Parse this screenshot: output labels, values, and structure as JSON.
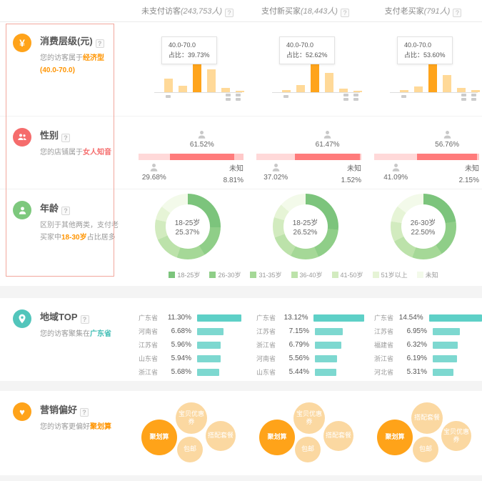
{
  "icons": {
    "yen": "¥",
    "heart": "♥",
    "help": "?"
  },
  "header": {
    "columns": [
      {
        "name": "未支付访客",
        "count": "(243,753人)"
      },
      {
        "name": "支付新买家",
        "count": "(18,443人)"
      },
      {
        "name": "支付老买家",
        "count": "(791人)"
      }
    ]
  },
  "sections": {
    "consumption": {
      "title": "消费层级(元)",
      "desc_prefix": "您的访客属于",
      "desc_highlight": "经济型(40.0-70.0)",
      "tooltip_label": "占比：",
      "colors": {
        "bar": "#ffd998",
        "bar_highlight": "#ffa41b"
      },
      "charts": [
        {
          "range": "40.0-70.0",
          "share": "39.73%",
          "bars": [
            46,
            22,
            100,
            77,
            14,
            5
          ],
          "highlight_index": 2
        },
        {
          "range": "40.0-70.0",
          "share": "52.62%",
          "bars": [
            7,
            23,
            100,
            65,
            12,
            5
          ],
          "highlight_index": 2
        },
        {
          "range": "40.0-70.0",
          "share": "53.60%",
          "bars": [
            7,
            19,
            100,
            58,
            14,
            7
          ],
          "highlight_index": 2
        }
      ]
    },
    "gender": {
      "title": "性别",
      "desc_prefix": "您的店铺属于",
      "desc_highlight": "女人知音",
      "unknown_label": "未知",
      "colors": {
        "primary": "#ff7b7b",
        "secondary": "#ffd9d9",
        "unknown": "#ffc9c9"
      },
      "charts": [
        {
          "primary": 61.52,
          "secondary": 29.68,
          "unknown": 8.81,
          "primary_label": "61.52%",
          "secondary_label": "29.68%",
          "unknown_value": "8.81%"
        },
        {
          "primary": 61.47,
          "secondary": 37.02,
          "unknown": 1.52,
          "primary_label": "61.47%",
          "secondary_label": "37.02%",
          "unknown_value": "1.52%"
        },
        {
          "primary": 56.76,
          "secondary": 41.09,
          "unknown": 2.15,
          "primary_label": "56.76%",
          "secondary_label": "41.09%",
          "unknown_value": "2.15%"
        }
      ]
    },
    "age": {
      "title": "年龄",
      "desc_prefix": "区别于其他两类，支付老买家中",
      "desc_highlight": "18-30岁",
      "desc_suffix": "占比居多",
      "palette": [
        "#7cc47c",
        "#8fce88",
        "#a5d897",
        "#bce2aa",
        "#d2ebbf",
        "#e6f4d6",
        "#f3faea"
      ],
      "legend": [
        "18-25岁",
        "26-30岁",
        "31-35岁",
        "36-40岁",
        "41-50岁",
        "51岁以上",
        "未知"
      ],
      "charts": [
        {
          "center_label": "18-25岁",
          "center_value": "25.37%",
          "segments": [
            25.37,
            16,
            14,
            13,
            10,
            7,
            14.63
          ]
        },
        {
          "center_label": "18-25岁",
          "center_value": "26.52%",
          "segments": [
            26.52,
            17,
            14,
            12,
            10,
            7,
            13.48
          ]
        },
        {
          "center_label": "26-30岁",
          "center_value": "22.50%",
          "segments": [
            22.5,
            18,
            15,
            12,
            10,
            8,
            14.5
          ]
        }
      ]
    },
    "region": {
      "title": "地域TOP",
      "desc_prefix": "您的访客聚集在",
      "desc_highlight": "广东省",
      "colors": {
        "bar": "#7dd8d0",
        "bar_top": "#5ed0c7"
      },
      "charts": [
        {
          "rows": [
            {
              "label": "广东省",
              "value": "11.30%"
            },
            {
              "label": "河南省",
              "value": "6.68%"
            },
            {
              "label": "江苏省",
              "value": "5.96%"
            },
            {
              "label": "山东省",
              "value": "5.94%"
            },
            {
              "label": "浙江省",
              "value": "5.68%"
            }
          ]
        },
        {
          "rows": [
            {
              "label": "广东省",
              "value": "13.12%"
            },
            {
              "label": "江苏省",
              "value": "7.15%"
            },
            {
              "label": "浙江省",
              "value": "6.79%"
            },
            {
              "label": "河南省",
              "value": "5.56%"
            },
            {
              "label": "山东省",
              "value": "5.44%"
            }
          ]
        },
        {
          "rows": [
            {
              "label": "广东省",
              "value": "14.54%"
            },
            {
              "label": "江苏省",
              "value": "6.95%"
            },
            {
              "label": "福建省",
              "value": "6.32%"
            },
            {
              "label": "浙江省",
              "value": "6.19%"
            },
            {
              "label": "河北省",
              "value": "5.31%"
            }
          ]
        }
      ]
    },
    "marketing": {
      "title": "营销偏好",
      "desc_prefix": "您的访客更偏好",
      "desc_highlight": "聚划算",
      "colors": {
        "main": "#ffa319",
        "light": "#fbd8a1"
      },
      "charts": [
        {
          "bubbles": [
            {
              "label": "聚划算",
              "pos": "main"
            },
            {
              "label": "宝贝优惠券",
              "pos": "top"
            },
            {
              "label": "搭配套餐",
              "pos": "right"
            },
            {
              "label": "包邮",
              "pos": "bottom"
            }
          ]
        },
        {
          "bubbles": [
            {
              "label": "聚划算",
              "pos": "main"
            },
            {
              "label": "宝贝优惠券",
              "pos": "top"
            },
            {
              "label": "搭配套餐",
              "pos": "right"
            },
            {
              "label": "包邮",
              "pos": "bottom"
            }
          ]
        },
        {
          "bubbles": [
            {
              "label": "聚划算",
              "pos": "main"
            },
            {
              "label": "搭配套餐",
              "pos": "top"
            },
            {
              "label": "宝贝优惠券",
              "pos": "right"
            },
            {
              "label": "包邮",
              "pos": "bottom"
            }
          ]
        }
      ]
    }
  },
  "chart_data": [
    {
      "type": "bar",
      "title": "消费层级(元)",
      "series": [
        {
          "name": "未支付访客",
          "highlight_range": "40.0-70.0",
          "highlight_share_pct": 39.73,
          "relative_bar_heights": [
            46,
            22,
            100,
            77,
            14,
            5
          ],
          "highlight_index": 2
        },
        {
          "name": "支付新买家",
          "highlight_range": "40.0-70.0",
          "highlight_share_pct": 52.62,
          "relative_bar_heights": [
            7,
            23,
            100,
            65,
            12,
            5
          ],
          "highlight_index": 2
        },
        {
          "name": "支付老买家",
          "highlight_range": "40.0-70.0",
          "highlight_share_pct": 53.6,
          "relative_bar_heights": [
            7,
            19,
            100,
            58,
            14,
            7
          ],
          "highlight_index": 2
        }
      ]
    },
    {
      "type": "bar",
      "title": "性别",
      "stacked": true,
      "categories": [
        "女(图标)",
        "男(图标)",
        "未知"
      ],
      "series": [
        {
          "name": "未支付访客",
          "values": [
            61.52,
            29.68,
            8.81
          ]
        },
        {
          "name": "支付新买家",
          "values": [
            61.47,
            37.02,
            1.52
          ]
        },
        {
          "name": "支付老买家",
          "values": [
            56.76,
            41.09,
            2.15
          ]
        }
      ]
    },
    {
      "type": "pie",
      "title": "年龄",
      "legend": [
        "18-25岁",
        "26-30岁",
        "31-35岁",
        "36-40岁",
        "41-50岁",
        "51岁以上",
        "未知"
      ],
      "series": [
        {
          "name": "未支付访客",
          "labeled_slice": "18-25岁",
          "labeled_value_pct": 25.37
        },
        {
          "name": "支付新买家",
          "labeled_slice": "18-25岁",
          "labeled_value_pct": 26.52
        },
        {
          "name": "支付老买家",
          "labeled_slice": "26-30岁",
          "labeled_value_pct": 22.5
        }
      ]
    },
    {
      "type": "bar",
      "title": "地域TOP",
      "orientation": "horizontal",
      "series": [
        {
          "name": "未支付访客",
          "categories": [
            "广东省",
            "河南省",
            "江苏省",
            "山东省",
            "浙江省"
          ],
          "values": [
            11.3,
            6.68,
            5.96,
            5.94,
            5.68
          ]
        },
        {
          "name": "支付新买家",
          "categories": [
            "广东省",
            "江苏省",
            "浙江省",
            "河南省",
            "山东省"
          ],
          "values": [
            13.12,
            7.15,
            6.79,
            5.56,
            5.44
          ]
        },
        {
          "name": "支付老买家",
          "categories": [
            "广东省",
            "江苏省",
            "福建省",
            "浙江省",
            "河北省"
          ],
          "values": [
            14.54,
            6.95,
            6.32,
            6.19,
            5.31
          ]
        }
      ]
    },
    {
      "type": "scatter",
      "subtype": "bubble",
      "title": "营销偏好",
      "series": [
        {
          "name": "未支付访客",
          "bubbles": [
            "聚划算",
            "宝贝优惠券",
            "搭配套餐",
            "包邮"
          ],
          "largest": "聚划算"
        },
        {
          "name": "支付新买家",
          "bubbles": [
            "聚划算",
            "宝贝优惠券",
            "搭配套餐",
            "包邮"
          ],
          "largest": "聚划算"
        },
        {
          "name": "支付老买家",
          "bubbles": [
            "聚划算",
            "搭配套餐",
            "宝贝优惠券",
            "包邮"
          ],
          "largest": "聚划算"
        }
      ]
    }
  ]
}
